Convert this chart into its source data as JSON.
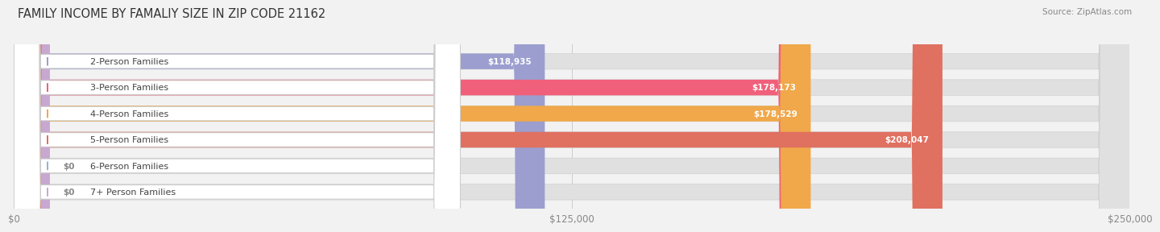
{
  "title": "FAMILY INCOME BY FAMALIY SIZE IN ZIP CODE 21162",
  "source": "Source: ZipAtlas.com",
  "categories": [
    "2-Person Families",
    "3-Person Families",
    "4-Person Families",
    "5-Person Families",
    "6-Person Families",
    "7+ Person Families"
  ],
  "values": [
    118935,
    178173,
    178529,
    208047,
    0,
    0
  ],
  "bar_colors": [
    "#9b9ece",
    "#f0607a",
    "#f0a84a",
    "#e07060",
    "#9ab0d8",
    "#c8a8d0"
  ],
  "value_labels": [
    "$118,935",
    "$178,173",
    "$178,529",
    "$208,047",
    "$0",
    "$0"
  ],
  "xlim": [
    0,
    250000
  ],
  "xtick_values": [
    0,
    125000,
    250000
  ],
  "xtick_labels": [
    "$0",
    "$125,000",
    "$250,000"
  ],
  "bg_color": "#f2f2f2",
  "title_fontsize": 10.5,
  "label_fontsize": 8.0,
  "value_fontsize": 7.5,
  "source_fontsize": 7.5
}
